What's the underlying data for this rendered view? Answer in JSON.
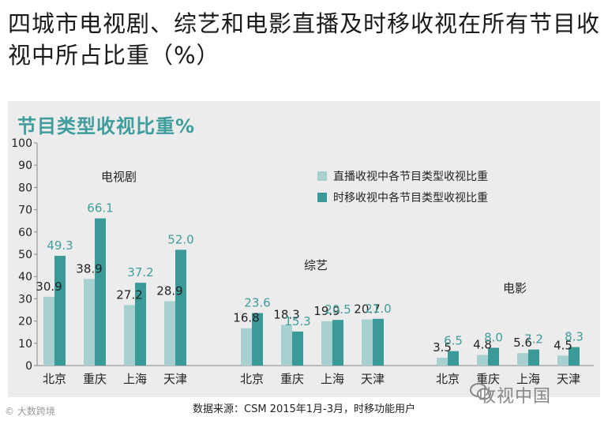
{
  "page": {
    "title": "四城市电视剧、综艺和电影直播及时移收视在所有节目收视中所占比重（%）",
    "chart_heading": "节目类型收视比重%",
    "source_note": "数据来源：CSM 2015年1月-3月，时移功能用户",
    "watermark_left": "大数跨境",
    "watermark_right": "收视中国"
  },
  "colors": {
    "live": "#a7d0d1",
    "shift": "#3a9a98",
    "shift_label": "#3f9d9b",
    "panel": "#ececec"
  },
  "chart_data": {
    "type": "bar",
    "title": "节目类型收视比重%",
    "ylim": [
      0,
      100
    ],
    "yticks": [
      0,
      10,
      20,
      30,
      40,
      50,
      60,
      70,
      80,
      90,
      100
    ],
    "groups": [
      {
        "name": "电视剧",
        "categories": [
          "北京",
          "重庆",
          "上海",
          "天津"
        ],
        "live": [
          30.9,
          38.9,
          27.2,
          28.9
        ],
        "shift": [
          49.3,
          66.1,
          37.2,
          52.0
        ],
        "live_labels": [
          "30.9",
          "38.9",
          "27.2",
          "28.9"
        ],
        "shift_labels": [
          "49.3",
          "66.1",
          "37.2",
          "52.0"
        ]
      },
      {
        "name": "综艺",
        "categories": [
          "北京",
          "重庆",
          "上海",
          "天津"
        ],
        "live": [
          16.8,
          18.3,
          19.9,
          20.7
        ],
        "shift": [
          23.6,
          15.3,
          20.5,
          21.0
        ],
        "live_labels": [
          "16.8",
          "18.3",
          "19.9",
          "20.7"
        ],
        "shift_labels": [
          "23.6",
          "15.3",
          "20.5",
          "21.0"
        ]
      },
      {
        "name": "电影",
        "categories": [
          "北京",
          "重庆",
          "上海",
          "天津"
        ],
        "live": [
          3.5,
          4.8,
          5.6,
          4.5
        ],
        "shift": [
          6.5,
          8.0,
          7.2,
          8.3
        ],
        "live_labels": [
          "3.5",
          "4.8",
          "5.6",
          "4.5"
        ],
        "shift_labels": [
          "6.5",
          "8.0",
          "7.2",
          "8.3"
        ]
      }
    ],
    "legend": [
      "直播收视中各节目类型收视比重",
      "时移收视中各节目类型收视比重"
    ],
    "legend_position": "top-right",
    "grid": false
  }
}
